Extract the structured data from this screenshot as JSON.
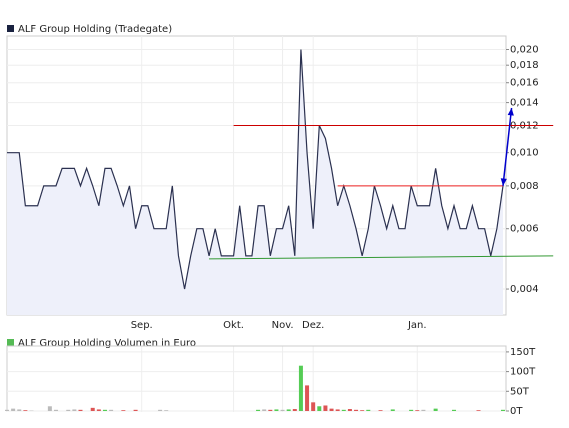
{
  "chart_data": [
    {
      "type": "line",
      "title": "ALF Group Holding (Tradegate)",
      "log_scale": true,
      "grid": true,
      "legend_color": "#1a2240",
      "fill": "#eef0fa",
      "categories": [
        null,
        null,
        null,
        null,
        null,
        null,
        null,
        null,
        null,
        null,
        null,
        null,
        null,
        null,
        null,
        null,
        null,
        null,
        null,
        null,
        null,
        null,
        "Sep.",
        null,
        null,
        null,
        null,
        null,
        null,
        null,
        null,
        null,
        null,
        null,
        null,
        null,
        null,
        "Okt.",
        null,
        null,
        null,
        null,
        null,
        null,
        null,
        "Nov.",
        null,
        null,
        null,
        null,
        "Dez.",
        null,
        null,
        null,
        null,
        null,
        null,
        null,
        null,
        null,
        null,
        null,
        null,
        null,
        null,
        null,
        null,
        "Jan.",
        null,
        null,
        null,
        null,
        null,
        null,
        null,
        null,
        null,
        null,
        null,
        null,
        null,
        null
      ],
      "series": [
        {
          "name": "ALF Group Holding (Tradegate)",
          "color": "#2b3150",
          "values": [
            0.01,
            0.01,
            0.01,
            0.007,
            0.007,
            0.007,
            0.008,
            0.008,
            0.008,
            0.009,
            0.009,
            0.009,
            0.008,
            0.009,
            0.008,
            0.007,
            0.009,
            0.009,
            0.008,
            0.007,
            0.008,
            0.006,
            0.007,
            0.007,
            0.006,
            0.006,
            0.006,
            0.008,
            0.005,
            0.004,
            0.005,
            0.006,
            0.006,
            0.005,
            0.006,
            0.005,
            0.005,
            0.005,
            0.007,
            0.005,
            0.005,
            0.007,
            0.007,
            0.005,
            0.006,
            0.006,
            0.007,
            0.005,
            0.02,
            0.01,
            0.006,
            0.012,
            0.011,
            0.009,
            0.007,
            0.008,
            0.007,
            0.006,
            0.005,
            0.006,
            0.008,
            0.007,
            0.006,
            0.007,
            0.006,
            0.006,
            0.008,
            0.007,
            0.007,
            0.007,
            0.009,
            0.007,
            0.006,
            0.007,
            0.006,
            0.006,
            0.007,
            0.006,
            0.006,
            0.005,
            0.006,
            0.008
          ]
        }
      ],
      "ylim": [
        0.00336,
        0.0219
      ],
      "yticks": [
        {
          "value": 0.004,
          "label": "0,004"
        },
        {
          "value": 0.006,
          "label": "0,006"
        },
        {
          "value": 0.008,
          "label": "0,008"
        },
        {
          "value": 0.01,
          "label": "0,010"
        },
        {
          "value": 0.012,
          "label": "0,012"
        },
        {
          "value": 0.014,
          "label": "0,014"
        },
        {
          "value": 0.016,
          "label": "0,016"
        },
        {
          "value": 0.018,
          "label": "0,018"
        },
        {
          "value": 0.02,
          "label": "0,020"
        }
      ],
      "lines": [
        {
          "color": "#cc0000",
          "start": 37,
          "end": 89.2,
          "values": [
            0.012,
            0.012
          ]
        },
        {
          "color": "#ee2222",
          "start": 54,
          "end": 81,
          "values": [
            0.008,
            0.008
          ]
        },
        {
          "color": "#339933",
          "start": 33,
          "end": 89.2,
          "values": [
            0.0049,
            0.005
          ]
        },
        {
          "color": "#0000cc",
          "start": 81,
          "end": 82.4,
          "values": [
            0.008,
            0.0135
          ],
          "arrow": true
        }
      ]
    },
    {
      "type": "bar",
      "title": "ALF Group Holding Volumen in Euro",
      "legend_color": "#55bb55",
      "up_color": "#55cc55",
      "down_color": "#dd5555",
      "flat_color": "#bbbbbb",
      "values": [
        3000,
        6000,
        4000,
        2000,
        1000,
        0,
        0,
        12000,
        3000,
        0,
        3000,
        4000,
        3000,
        0,
        8000,
        4000,
        3000,
        3000,
        0,
        2000,
        0,
        3000,
        0,
        0,
        0,
        3000,
        2000,
        0,
        0,
        0,
        0,
        0,
        0,
        0,
        0,
        0,
        0,
        0,
        0,
        0,
        0,
        3000,
        4000,
        3000,
        4000,
        3000,
        4000,
        5000,
        115000,
        65000,
        22000,
        12000,
        14000,
        6000,
        4000,
        3000,
        5000,
        3000,
        2000,
        3000,
        0,
        2000,
        0,
        4000,
        0,
        0,
        3000,
        2000,
        3000,
        0,
        6000,
        0,
        0,
        3000,
        0,
        0,
        0,
        2000,
        0,
        0,
        0,
        3000
      ],
      "ylim": [
        0,
        165000
      ],
      "yticks": [
        {
          "value": 0,
          "label": "0T"
        },
        {
          "value": 50000,
          "label": "50T"
        },
        {
          "value": 100000,
          "label": "100T"
        },
        {
          "value": 150000,
          "label": "150T"
        }
      ]
    }
  ]
}
